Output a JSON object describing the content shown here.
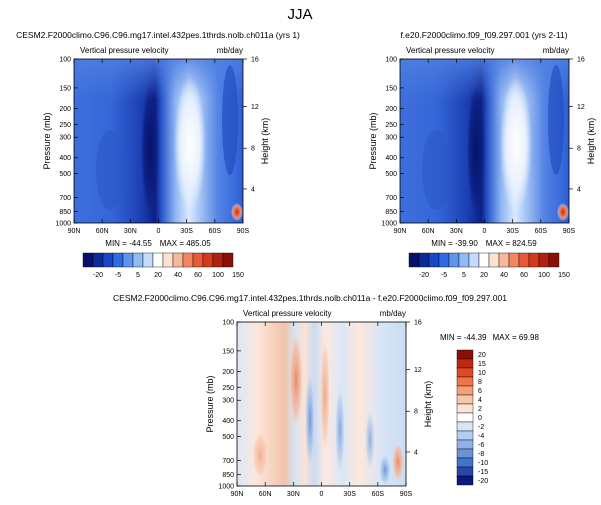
{
  "title": "JJA",
  "chart_data": [
    {
      "type": "heatmap",
      "title": "CESM2.F2000climo.C96.C96.mg17.intel.432pes.1thrds.nolb.ch011a (yrs 1)",
      "left_label": "Vertical pressure velocity",
      "units": "mb/day",
      "ylabel": "Pressure (mb)",
      "y2label": "Height (km)",
      "xlabel": "",
      "x_ticks": [
        "90N",
        "60N",
        "30N",
        "0",
        "30S",
        "60S",
        "90S"
      ],
      "y_ticks": [
        "100",
        "150",
        "200",
        "250",
        "300",
        "400",
        "500",
        "700",
        "850",
        "1000"
      ],
      "y2_ticks": [
        "16",
        "12",
        "8",
        "4"
      ],
      "min_label": "MIN = -44.55",
      "max_label": "MAX = 485.05",
      "colorbar_levels": [
        "-20",
        "-5",
        "5",
        "20",
        "40",
        "60",
        "100",
        "150"
      ]
    },
    {
      "type": "heatmap",
      "title": "f.e20.F2000climo.f09_f09.297.001 (yrs 2-11)",
      "left_label": "Vertical pressure velocity",
      "units": "mb/day",
      "ylabel": "Pressure (mb)",
      "y2label": "Height (km)",
      "xlabel": "",
      "x_ticks": [
        "90N",
        "60N",
        "30N",
        "0",
        "30S",
        "60S",
        "90S"
      ],
      "y_ticks": [
        "100",
        "150",
        "200",
        "250",
        "300",
        "400",
        "500",
        "700",
        "850",
        "1000"
      ],
      "y2_ticks": [
        "16",
        "12",
        "8",
        "4"
      ],
      "min_label": "MIN = -39.90",
      "max_label": "MAX = 824.59",
      "colorbar_levels": [
        "-20",
        "-5",
        "5",
        "20",
        "40",
        "60",
        "100",
        "150"
      ]
    },
    {
      "type": "heatmap",
      "title": "CESM2.F2000climo.C96.C96.mg17.intel.432pes.1thrds.nolb.ch011a - f.e20.F2000climo.f09_f09.297.001",
      "left_label": "Vertical pressure velocity",
      "units": "mb/day",
      "ylabel": "Pressure (mb)",
      "y2label": "Height (km)",
      "xlabel": "",
      "x_ticks": [
        "90N",
        "60N",
        "30N",
        "0",
        "30S",
        "60S",
        "90S"
      ],
      "y_ticks": [
        "100",
        "150",
        "200",
        "250",
        "300",
        "400",
        "500",
        "700",
        "850",
        "1000"
      ],
      "y2_ticks": [
        "16",
        "12",
        "8",
        "4"
      ],
      "min_label": "MIN = -44.39",
      "max_label": "MAX = 69.98",
      "colorbar_levels": [
        "20",
        "15",
        "10",
        "8",
        "6",
        "4",
        "2",
        "0",
        "-2",
        "-4",
        "-6",
        "-8",
        "-10",
        "-15",
        "-20"
      ]
    }
  ],
  "colors": {
    "abs_colorbar": [
      "#08106b",
      "#0a2a9a",
      "#1846c8",
      "#2f6be0",
      "#5b95ee",
      "#8fbcf5",
      "#c4dcfb",
      "#ffffff",
      "#fde2d2",
      "#f9b79a",
      "#f3855f",
      "#e85a37",
      "#d33a1c",
      "#b22010",
      "#8a0f07"
    ],
    "diff_colorbar": [
      "#8a0f07",
      "#c02812",
      "#de4a24",
      "#ef7448",
      "#f5a079",
      "#f9c6ab",
      "#fce4d6",
      "#ffffff",
      "#d7e6f7",
      "#b4cdef",
      "#8fb1e5",
      "#6a92d8",
      "#4473c9",
      "#2548a8",
      "#0a1a7a"
    ]
  }
}
